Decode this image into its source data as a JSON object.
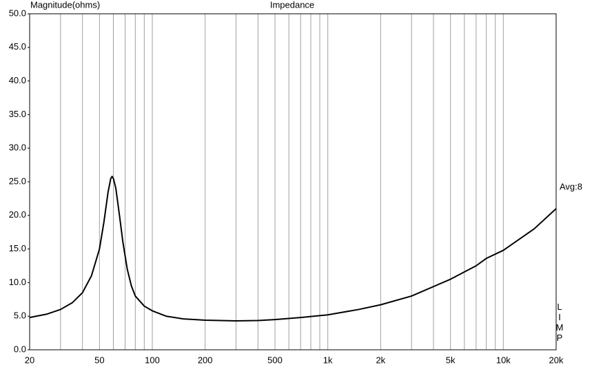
{
  "chart_data": {
    "type": "line",
    "title": "Impedance",
    "y_label": "Magnitude(ohms)",
    "annotation": "Avg:8",
    "side_label": "LIMP",
    "x_scale": "log",
    "grid": "x",
    "color": "#000000",
    "x": [
      20,
      25,
      30,
      35,
      40,
      45,
      50,
      53,
      56,
      58,
      59,
      60,
      62,
      65,
      68,
      72,
      76,
      80,
      90,
      100,
      120,
      150,
      200,
      300,
      400,
      500,
      700,
      1000,
      1500,
      2000,
      3000,
      5000,
      7000,
      8000,
      10000,
      15000,
      20000
    ],
    "values": [
      4.8,
      5.3,
      6.0,
      7.0,
      8.5,
      11,
      15,
      19,
      23.5,
      25.5,
      25.8,
      25.5,
      24,
      20,
      16,
      12,
      9.5,
      8,
      6.5,
      5.8,
      5.0,
      4.6,
      4.4,
      4.3,
      4.35,
      4.5,
      4.8,
      5.2,
      6.0,
      6.7,
      8.0,
      10.5,
      12.5,
      13.6,
      14.8,
      18,
      21
    ],
    "xlim": [
      20,
      20000
    ],
    "xticks": [
      20,
      50,
      100,
      200,
      500,
      {
        "value": 1000,
        "label": "1k"
      },
      {
        "value": 2000,
        "label": "2k"
      },
      {
        "value": 5000,
        "label": "5k"
      },
      {
        "value": 10000,
        "label": "10k"
      },
      {
        "value": 20000,
        "label": "20k"
      }
    ],
    "xminorticks": [
      30,
      40,
      60,
      70,
      80,
      90,
      300,
      400,
      600,
      700,
      800,
      900,
      3000,
      4000,
      6000,
      7000,
      8000,
      9000
    ],
    "ylim": [
      0,
      50
    ],
    "yticks": [
      {
        "value": 0,
        "label": "0.0"
      },
      {
        "value": 5,
        "label": "5.0"
      },
      {
        "value": 10,
        "label": "10.0"
      },
      {
        "value": 15,
        "label": "15.0"
      },
      {
        "value": 20,
        "label": "20.0"
      },
      {
        "value": 25,
        "label": "25.0"
      },
      {
        "value": 30,
        "label": "30.0"
      },
      {
        "value": 35,
        "label": "35.0"
      },
      {
        "value": 40,
        "label": "40.0"
      },
      {
        "value": 45,
        "label": "45.0"
      },
      {
        "value": 50,
        "label": "50.0"
      }
    ]
  }
}
